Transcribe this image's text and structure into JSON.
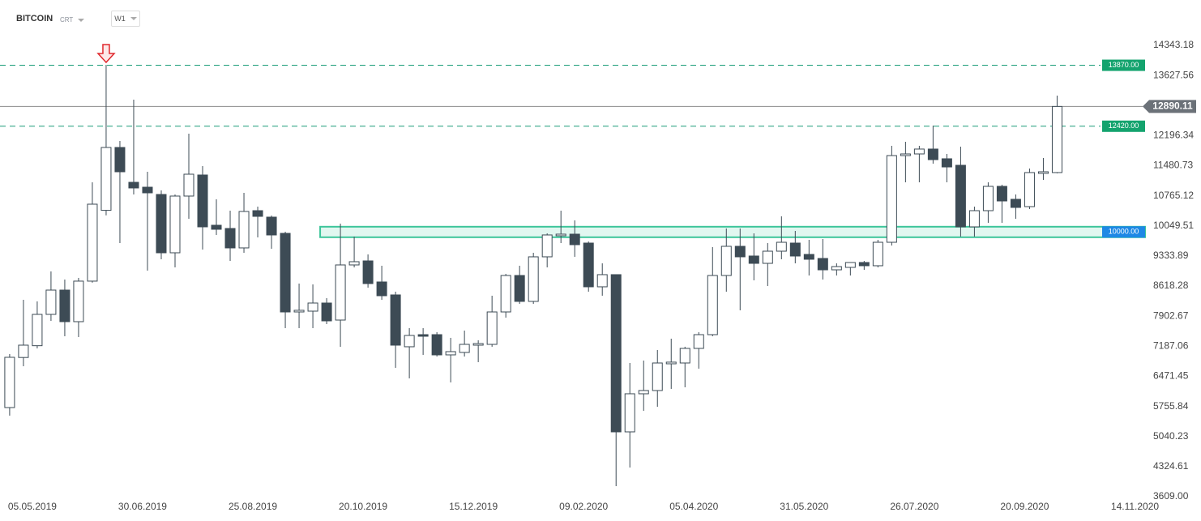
{
  "header": {
    "symbol": "BITCOIN",
    "group": "CRT",
    "interval": "W1"
  },
  "chart_data": {
    "type": "candlestick",
    "open": [
      5729,
      6920,
      7200,
      7945,
      8523,
      7772,
      8736,
      10420,
      11915,
      11086,
      10970,
      10797,
      9410,
      10759,
      11260,
      10065,
      9988,
      9526,
      10412,
      10258,
      9872,
      8003,
      8022,
      8215,
      7810,
      9121,
      9217,
      8716,
      8408,
      7175,
      7463,
      7463,
      6982,
      7040,
      7213,
      7232,
      8003,
      8870,
      8254,
      9314,
      9815,
      9853,
      9641,
      8601,
      8890,
      5151,
      6057,
      6134,
      6770,
      6789,
      7136,
      7463,
      8870,
      9564,
      9333,
      9159,
      9448,
      9641,
      9371,
      9275,
      9005,
      9063,
      9179,
      9102,
      9660,
      11722,
      11761,
      11877,
      11646,
      11491,
      10027,
      10412,
      10990,
      10682,
      10508,
      11299,
      11318
    ],
    "high": [
      7001,
      8292,
      8254,
      8967,
      8774,
      8813,
      11086,
      13880,
      12069,
      13052,
      11337,
      10894,
      10797,
      12243,
      11472,
      10682,
      10412,
      10836,
      10508,
      10296,
      9911,
      8678,
      8658,
      8331,
      10104,
      9795,
      9371,
      9102,
      8485,
      7618,
      7618,
      7521,
      7387,
      7560,
      7329,
      8389,
      8909,
      9102,
      9410,
      9872,
      10412,
      10181,
      9680,
      9159,
      8890,
      6789,
      6847,
      7098,
      7367,
      7175,
      7521,
      9545,
      9988,
      9988,
      9872,
      9641,
      10277,
      9930,
      9718,
      9737,
      9159,
      9179,
      9217,
      9718,
      11954,
      12050,
      11954,
      12435,
      11761,
      11934,
      10508,
      11086,
      11029,
      10797,
      11414,
      11665,
      13148
    ],
    "low": [
      5537,
      6712,
      7136,
      7791,
      7425,
      7406,
      8700,
      10300,
      9641,
      10797,
      8986,
      9256,
      9063,
      10219,
      9487,
      9834,
      9217,
      9410,
      9776,
      9506,
      7618,
      7618,
      7618,
      7714,
      7175,
      9063,
      8581,
      8292,
      6674,
      6423,
      6982,
      6943,
      6327,
      6943,
      6809,
      7175,
      7868,
      8196,
      8196,
      9063,
      9641,
      9314,
      8485,
      8389,
      3860,
      4303,
      5652,
      5748,
      6173,
      6211,
      6654,
      7425,
      8485,
      8042,
      8755,
      8620,
      9256,
      9159,
      8870,
      8774,
      8870,
      8870,
      9005,
      9063,
      9583,
      11086,
      11086,
      11530,
      11086,
      9795,
      9795,
      10123,
      10123,
      10219,
      10450,
      11144,
      11300
    ],
    "close": [
      6924,
      7213,
      7945,
      8523,
      7772,
      8736,
      10566,
      11915,
      11337,
      10952,
      10836,
      9410,
      10759,
      11279,
      10027,
      9969,
      9526,
      10393,
      10277,
      9834,
      8003,
      8042,
      8215,
      7791,
      9121,
      9198,
      8678,
      8389,
      7213,
      7444,
      7425,
      6982,
      7059,
      7232,
      7251,
      8003,
      8870,
      8254,
      9314,
      9834,
      9853,
      9603,
      8601,
      8890,
      5151,
      6057,
      6134,
      6789,
      6809,
      7136,
      7463,
      8870,
      9564,
      9314,
      9159,
      9448,
      9660,
      9333,
      9256,
      9005,
      9082,
      9179,
      9102,
      9660,
      11722,
      11761,
      11877,
      11626,
      11452,
      10027,
      10412,
      10990,
      10643,
      10489,
      11318,
      11337,
      12890
    ],
    "up_color": "#ffffff",
    "down_color": "#3d4b55",
    "edge_color": "#3d4b55",
    "xlim": [
      -0.7,
      82.5
    ],
    "xticks": [
      {
        "value": 0,
        "label": "05.05.2019"
      },
      {
        "value": 8,
        "label": "30.06.2019"
      },
      {
        "value": 16,
        "label": "25.08.2019"
      },
      {
        "value": 24,
        "label": "20.10.2019"
      },
      {
        "value": 32,
        "label": "15.12.2019"
      },
      {
        "value": 40,
        "label": "09.02.2020"
      },
      {
        "value": 48,
        "label": "05.04.2020"
      },
      {
        "value": 56,
        "label": "31.05.2020"
      },
      {
        "value": 64,
        "label": "26.07.2020"
      },
      {
        "value": 72,
        "label": "20.09.2020"
      },
      {
        "value": 80,
        "label": "14.11.2020"
      }
    ],
    "ylim": [
      3609,
      14651.5
    ],
    "yticks": [
      14343.18,
      13627.56,
      12196.34,
      11480.73,
      10765.12,
      10049.51,
      9333.89,
      8618.28,
      7902.67,
      7187.06,
      6471.45,
      5755.84,
      5040.23,
      4324.61,
      {
        "value": 3609,
        "label": "3609.00"
      }
    ],
    "levels": [
      {
        "value": 13870,
        "label": "13870.00",
        "style": "dashed",
        "color": "#1a9c78"
      },
      {
        "value": 12420,
        "label": "12420.00",
        "style": "dashed",
        "color": "#1a9c78"
      },
      {
        "value": 12890.11,
        "label": "12890.11",
        "style": "solid",
        "color": "#8c8c8c"
      }
    ],
    "zone": {
      "low": 9780,
      "high": 10030,
      "label": "10000.00",
      "start": 23,
      "color": "#1e88e5"
    },
    "arrow_index": 7
  }
}
